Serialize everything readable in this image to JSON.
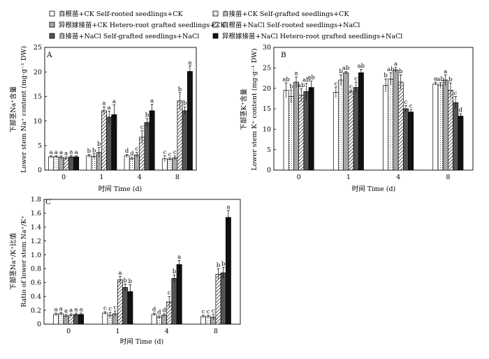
{
  "legend": [
    {
      "key": "own_ck",
      "label": "自根苗+CK  Self-rooted seedlings+CK"
    },
    {
      "key": "self_ck",
      "label": "自接苗+CK  Self-grafted seedlings+CK"
    },
    {
      "key": "hetero_ck",
      "label": "异根嫁接苗+CK  Hetero-root grafted seedlings+CK"
    },
    {
      "key": "own_nacl",
      "label": "自根苗+NaCl  Self-rooted seedlings+NaCl"
    },
    {
      "key": "self_nacl",
      "label": "自接苗+NaCl  Self-grafted seedlings+NaCl"
    },
    {
      "key": "hetero_nacl",
      "label": "异根嫁接苗+NaCl  Hetero-root grafted seedlings+NaCl"
    }
  ],
  "chart_data": [
    {
      "panel": "A",
      "type": "bar",
      "categories": [
        "0",
        "1",
        "4",
        "8"
      ],
      "xlabel": "时间 Time (d)",
      "ylabel_cn": "下部茎Na⁺含量",
      "ylabel_en": "Lower stem Na⁺ content (mg·g⁻¹ DW)",
      "ylim": [
        0,
        25
      ],
      "yticks": [
        "0",
        "5",
        "10",
        "15",
        "20",
        "25"
      ],
      "series": [
        {
          "key": "own_ck",
          "values": [
            2.7,
            2.9,
            2.9,
            2.3
          ],
          "errors": [
            0.2,
            0.3,
            0.3,
            0.6
          ],
          "letters": [
            "a",
            "b",
            "d",
            "c"
          ]
        },
        {
          "key": "self_ck",
          "values": [
            2.7,
            2.8,
            2.3,
            2.2
          ],
          "errors": [
            0.2,
            0.5,
            0.3,
            0.3
          ],
          "letters": [
            "a",
            "b",
            "d",
            "c"
          ]
        },
        {
          "key": "hetero_ck",
          "values": [
            2.6,
            3.6,
            3.1,
            2.5
          ],
          "errors": [
            0.3,
            1.0,
            0.5,
            0.4
          ],
          "letters": [
            "a",
            "b",
            "c",
            "c"
          ]
        },
        {
          "key": "own_nacl",
          "values": [
            2.4,
            12.1,
            6.7,
            14.1
          ],
          "errors": [
            0.3,
            0.8,
            1.3,
            1.7
          ],
          "letters": [
            "a",
            "a",
            "c",
            "b"
          ]
        },
        {
          "key": "self_nacl",
          "values": [
            2.7,
            10.8,
            9.7,
            12.1
          ],
          "errors": [
            0.3,
            1.2,
            0.8,
            0.8
          ],
          "letters": [
            "a",
            "a",
            "b",
            "b"
          ]
        },
        {
          "key": "hetero_nacl",
          "values": [
            2.7,
            11.3,
            12.1,
            20.1
          ],
          "errors": [
            0.2,
            2.0,
            1.3,
            1.1
          ],
          "letters": [
            "a",
            "a",
            "a",
            "a"
          ]
        }
      ]
    },
    {
      "panel": "B",
      "type": "bar",
      "categories": [
        "0",
        "1",
        "4",
        "8"
      ],
      "xlabel": "时间 Time (d)",
      "ylabel_cn": "下部茎K⁺含量",
      "ylabel_en": "Lower stem K⁺ content (mg·g⁻¹ DW)",
      "ylim": [
        0,
        30
      ],
      "yticks": [
        "0",
        "5",
        "10",
        "15",
        "20",
        "25",
        "30"
      ],
      "series": [
        {
          "key": "own_ck",
          "values": [
            19.5,
            19.0,
            20.7,
            21.1
          ],
          "errors": [
            1.8,
            1.3,
            1.6,
            0.4
          ],
          "letters": [
            "ab",
            "c",
            "b",
            "a"
          ]
        },
        {
          "key": "self_ck",
          "values": [
            18.0,
            22.0,
            22.3,
            20.8
          ],
          "errors": [
            1.6,
            1.3,
            1.5,
            0.6
          ],
          "letters": [
            "b",
            "b",
            "ab",
            "ab"
          ]
        },
        {
          "key": "hetero_ck",
          "values": [
            21.5,
            23.8,
            24.5,
            22.0
          ],
          "errors": [
            1.3,
            0.3,
            0.6,
            1.3
          ],
          "letters": [
            "a",
            "ab",
            "a",
            "a"
          ]
        },
        {
          "key": "own_nacl",
          "values": [
            18.3,
            19.2,
            21.5,
            19.5
          ],
          "errors": [
            1.6,
            0.4,
            1.8,
            1.8
          ],
          "letters": [
            "ab",
            "c",
            "b",
            "b"
          ]
        },
        {
          "key": "self_nacl",
          "values": [
            19.2,
            20.2,
            15.0,
            16.5
          ],
          "errors": [
            2.0,
            1.3,
            0.8,
            1.5
          ],
          "letters": [
            "ab",
            "c",
            "c",
            "c"
          ]
        },
        {
          "key": "hetero_nacl",
          "values": [
            20.2,
            23.8,
            14.2,
            13.2
          ],
          "errors": [
            1.6,
            0.8,
            0.6,
            0.6
          ],
          "letters": [
            "ab",
            "ab",
            "c",
            "d"
          ]
        }
      ]
    },
    {
      "panel": "C",
      "type": "bar",
      "categories": [
        "0",
        "1",
        "4",
        "8"
      ],
      "xlabel": "时间 Time (d)",
      "ylabel_cn": "下部茎Na⁺/K⁺比值",
      "ylabel_en": "Ratio of lower stem Na⁺/K⁺",
      "ylim": [
        0,
        1.8
      ],
      "yticks": [
        "0",
        "0.2",
        "0.4",
        "0.6",
        "0.8",
        "1.0",
        "1.2",
        "1.4",
        "1.6",
        "1.8"
      ],
      "series": [
        {
          "key": "own_ck",
          "values": [
            0.14,
            0.16,
            0.14,
            0.11
          ],
          "errors": [
            0.02,
            0.02,
            0.02,
            0.02
          ],
          "letters": [
            "a",
            "c",
            "d",
            "c"
          ]
        },
        {
          "key": "self_ck",
          "values": [
            0.15,
            0.13,
            0.1,
            0.11
          ],
          "errors": [
            0.02,
            0.04,
            0.02,
            0.02
          ],
          "letters": [
            "a",
            "c",
            "d",
            "c"
          ]
        },
        {
          "key": "hetero_ck",
          "values": [
            0.12,
            0.15,
            0.13,
            0.1
          ],
          "errors": [
            0.02,
            0.04,
            0.02,
            0.04
          ],
          "letters": [
            "a",
            "c",
            "d",
            "c"
          ]
        },
        {
          "key": "own_nacl",
          "values": [
            0.13,
            0.64,
            0.32,
            0.72
          ],
          "errors": [
            0.02,
            0.05,
            0.08,
            0.08
          ],
          "letters": [
            "a",
            "a",
            "c",
            "b"
          ]
        },
        {
          "key": "self_nacl",
          "values": [
            0.14,
            0.53,
            0.66,
            0.74
          ],
          "errors": [
            0.02,
            0.05,
            0.05,
            0.08
          ],
          "letters": [
            "a",
            "b",
            "b",
            "b"
          ]
        },
        {
          "key": "hetero_nacl",
          "values": [
            0.14,
            0.47,
            0.86,
            1.54
          ],
          "errors": [
            0.02,
            0.1,
            0.06,
            0.1
          ],
          "letters": [
            "a",
            "b",
            "a",
            "a"
          ]
        }
      ]
    }
  ]
}
